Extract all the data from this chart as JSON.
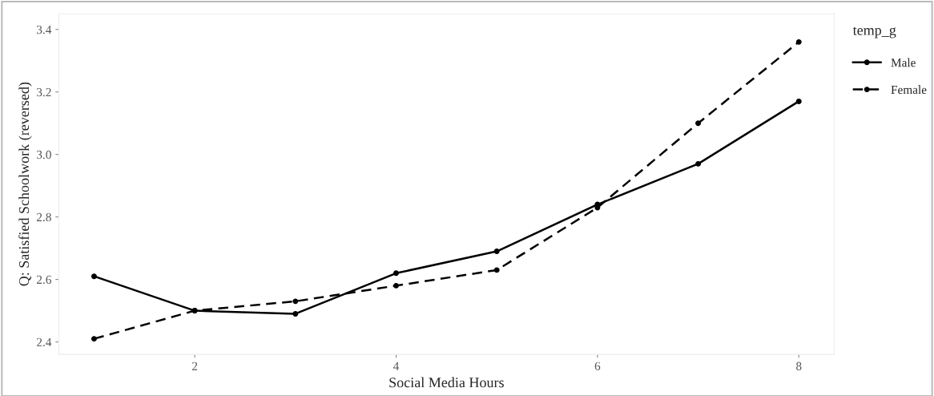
{
  "chart_data": {
    "type": "line",
    "xlabel": "Social Media Hours",
    "ylabel": "Q: Satisfied Schoolwork (reversed)",
    "legend_title": "temp_g",
    "x": [
      1,
      2,
      3,
      4,
      5,
      6,
      7,
      8
    ],
    "series": [
      {
        "name": "Male",
        "color": "#000000",
        "line_style": "solid",
        "values": [
          2.61,
          2.5,
          2.49,
          2.62,
          2.69,
          2.84,
          2.97,
          3.17
        ]
      },
      {
        "name": "Female",
        "color": "#000000",
        "line_style": "dashed",
        "values": [
          2.41,
          2.5,
          2.53,
          2.58,
          2.63,
          2.83,
          3.1,
          3.36
        ]
      }
    ],
    "marker": "circle",
    "xlim": [
      0.65,
      8.35
    ],
    "ylim": [
      2.36,
      3.45
    ],
    "xticks": [
      2,
      4,
      6,
      8
    ],
    "yticks": [
      2.4,
      2.6,
      2.8,
      {
        "value": 3.0,
        "label": "3.0"
      },
      3.2,
      3.4
    ],
    "grid": false,
    "legend": "right"
  }
}
